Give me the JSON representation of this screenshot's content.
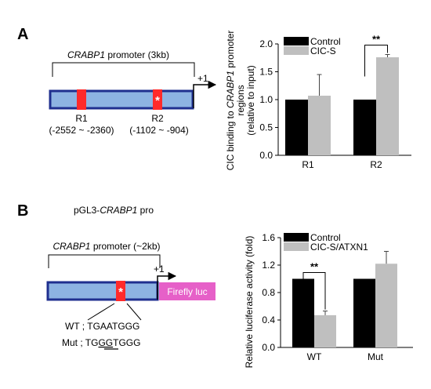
{
  "panel_a": {
    "label": "A",
    "promoter_label_gene": "CRABP1",
    "promoter_label_rest": " promoter (3kb)",
    "tss_label": "+1",
    "regions": [
      {
        "name": "R1",
        "range": "(-2552 ~ -2360)"
      },
      {
        "name": "R2",
        "range": "(-1102 ~ -904)"
      }
    ]
  },
  "panel_b": {
    "label": "B",
    "construct_prefix": "pGL3-",
    "construct_gene": "CRABP1",
    "construct_suffix": " pro",
    "promoter_label_gene": "CRABP1",
    "promoter_label_rest": " promoter (~2kb)",
    "tss_label": "+1",
    "reporter_label": "Firefly luc",
    "wt_prefix": "WT ; ",
    "wt_seq": "TGAATGGG",
    "mut_prefix": "Mut ; ",
    "mut_seq_a": "TG",
    "mut_seq_b": "GG",
    "mut_seq_c": "TGGG"
  },
  "colors": {
    "promoter_fill": "#8db3e2",
    "promoter_border": "#1f2f8f",
    "binding_site": "#ff2a2a",
    "luciferase": "#e660c8",
    "control_bar": "#000000",
    "treatment_bar": "#bfbfbf"
  },
  "chart_data": [
    {
      "type": "bar",
      "ylabel_line1": "CIC binding to ",
      "ylabel_gene": "CRABP1",
      "ylabel_line1_end": " promoter",
      "ylabel_line2": "regions",
      "ylabel_line3": "(relative to input)",
      "categories": [
        "R1",
        "R2"
      ],
      "series": [
        {
          "name": "Control",
          "values": [
            1.0,
            1.0
          ],
          "errors": [
            0,
            0
          ]
        },
        {
          "name": "CIC-S",
          "values": [
            1.07,
            1.76
          ],
          "errors": [
            0.38,
            0.05
          ]
        }
      ],
      "ylim": [
        0,
        2.0
      ],
      "yticks": [
        "0.0",
        "0.5",
        "1.0",
        "1.5",
        "2.0"
      ],
      "significance": [
        {
          "category": "R2",
          "label": "**"
        }
      ],
      "legend_position": "top-left"
    },
    {
      "type": "bar",
      "ylabel": "Relative luciferase activity (fold)",
      "categories": [
        "WT",
        "Mut"
      ],
      "series": [
        {
          "name": "Control",
          "values": [
            1.0,
            1.0
          ],
          "errors": [
            0,
            0
          ]
        },
        {
          "name": "CIC-S/ATXN1",
          "values": [
            0.47,
            1.22
          ],
          "errors": [
            0.06,
            0.18
          ]
        }
      ],
      "ylim": [
        0,
        1.6
      ],
      "yticks": [
        "0.0",
        "0.4",
        "0.8",
        "1.2",
        "1.6"
      ],
      "significance": [
        {
          "category": "WT",
          "label": "**"
        }
      ],
      "legend_position": "top-left"
    }
  ]
}
